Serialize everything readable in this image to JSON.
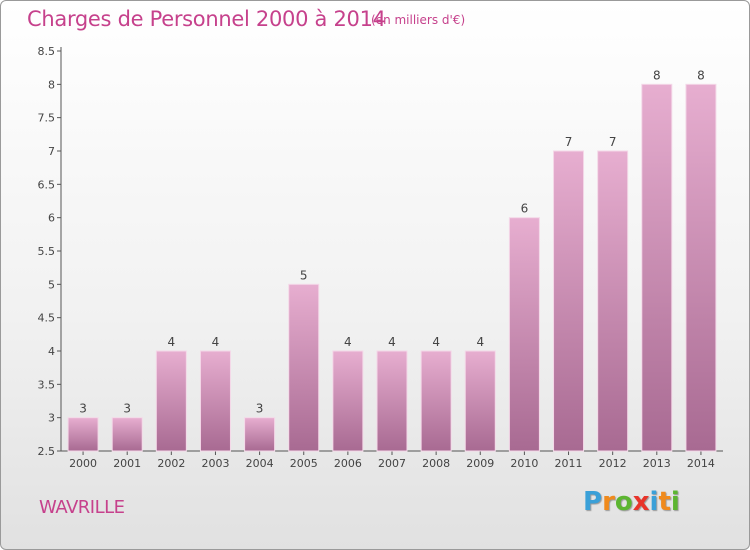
{
  "header": {
    "title": "Charges de Personnel 2000 à 2014",
    "unit": "(en milliers d'€)"
  },
  "footer": {
    "town": "WAVRILLE",
    "logo_letters": [
      "P",
      "r",
      "o",
      "x",
      "i",
      "t",
      "i"
    ],
    "logo_colors": [
      "#3aa0d8",
      "#f08a1c",
      "#5cb531",
      "#e8342a",
      "#3aa0d8",
      "#f08a1c",
      "#5cb531"
    ]
  },
  "colors": {
    "accent": "#c6418c",
    "bar_top": "#e7aed0",
    "bar_bottom": "#a86a92"
  },
  "chart_data": {
    "type": "bar",
    "categories": [
      "2000",
      "2001",
      "2002",
      "2003",
      "2004",
      "2005",
      "2006",
      "2007",
      "2008",
      "2009",
      "2010",
      "2011",
      "2012",
      "2013",
      "2014"
    ],
    "values": [
      3,
      3,
      4,
      4,
      3,
      5,
      4,
      4,
      4,
      4,
      6,
      7,
      7,
      8,
      8
    ],
    "data_labels": [
      "3",
      "3",
      "4",
      "4",
      "3",
      "5",
      "4",
      "4",
      "4",
      "4",
      "6",
      "7",
      "7",
      "8",
      "8"
    ],
    "y_ticks": [
      "2.5",
      "3",
      "3.5",
      "4",
      "4.5",
      "5",
      "5.5",
      "6",
      "6.5",
      "7",
      "7.5",
      "8",
      "8.5"
    ],
    "ylim": [
      2.5,
      8.5
    ],
    "grid": false
  }
}
